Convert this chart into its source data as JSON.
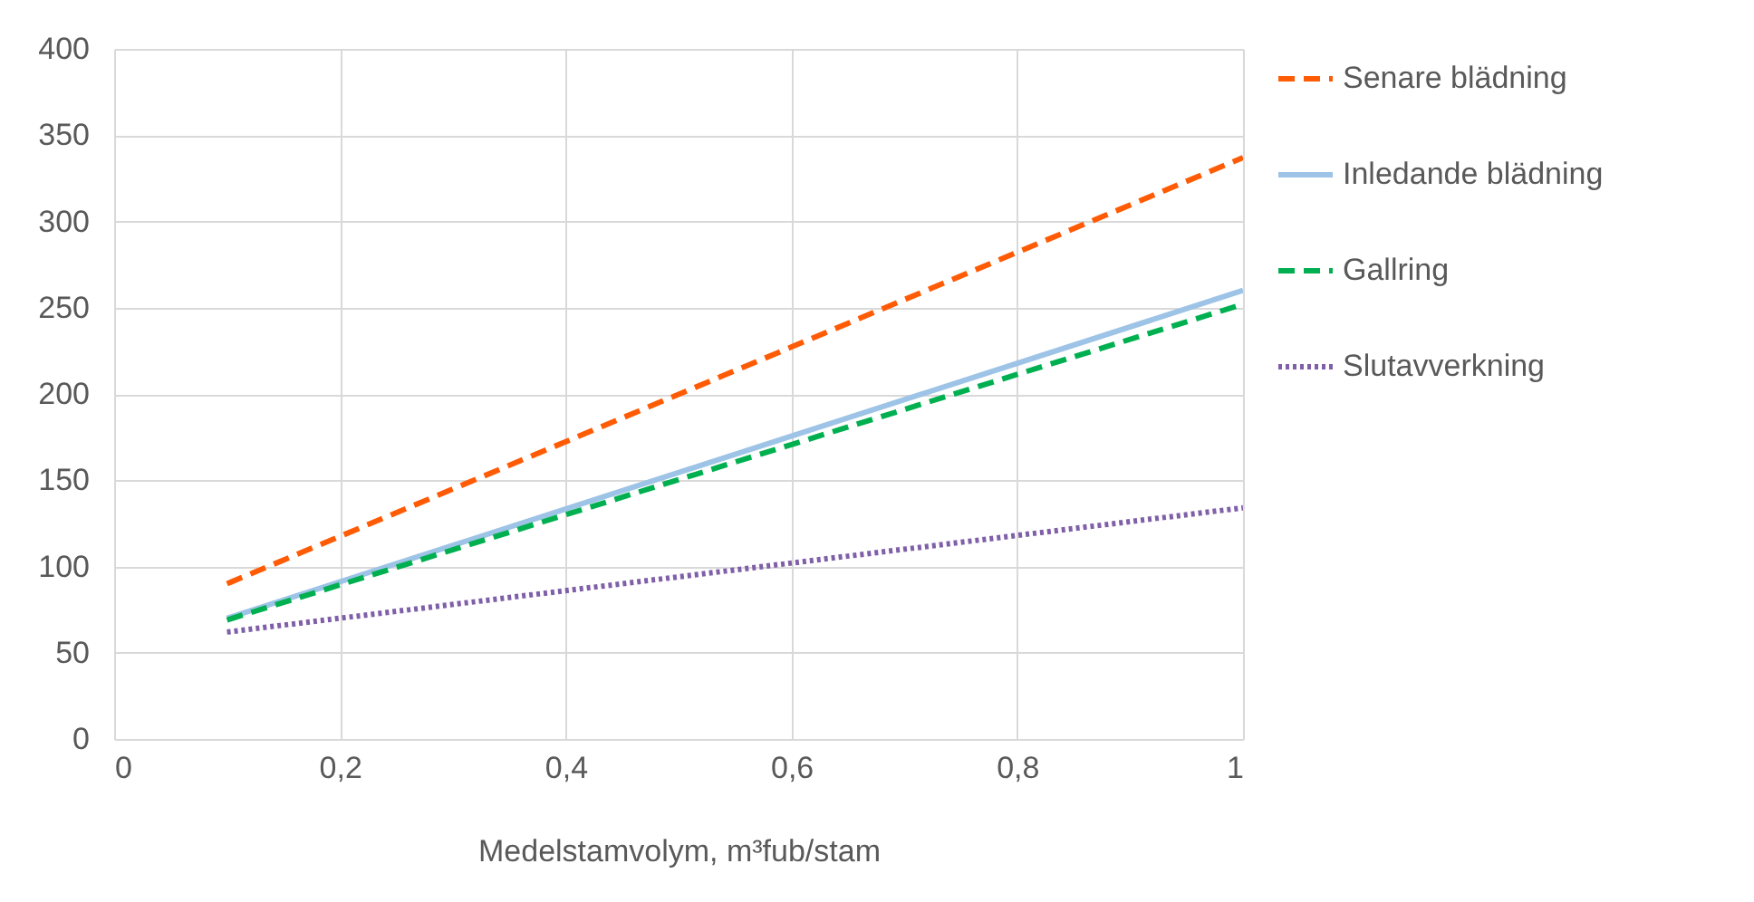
{
  "chart_data": {
    "type": "line",
    "xlabel": "Medelstamvolym, m³fub/stam",
    "x": [
      0.1,
      1
    ],
    "xlim": [
      0,
      1
    ],
    "xticks": [
      0,
      {
        "value": 0.2,
        "label": "0,2"
      },
      {
        "value": 0.4,
        "label": "0,4"
      },
      {
        "value": 0.6,
        "label": "0,6"
      },
      {
        "value": 0.8,
        "label": "0,8"
      },
      1
    ],
    "ylim": [
      0,
      400
    ],
    "yticks": [
      0,
      50,
      100,
      150,
      200,
      250,
      300,
      350,
      400
    ],
    "grid": true,
    "legend": "right",
    "marker": "none",
    "series": [
      {
        "name": "Senare blädning",
        "color": "#ff5b05",
        "line_style": "dashed",
        "values": [
          90,
          337
        ]
      },
      {
        "name": "Inledande blädning",
        "color": "#9dc3e6",
        "line_style": "solid",
        "values": [
          70,
          260
        ]
      },
      {
        "name": "Gallring",
        "color": "#00b050",
        "line_style": "dashed",
        "values": [
          69,
          252
        ]
      },
      {
        "name": "Slutavverkning",
        "color": "#7f5fa8",
        "line_style": "dotted",
        "values": [
          62,
          134
        ]
      }
    ]
  }
}
